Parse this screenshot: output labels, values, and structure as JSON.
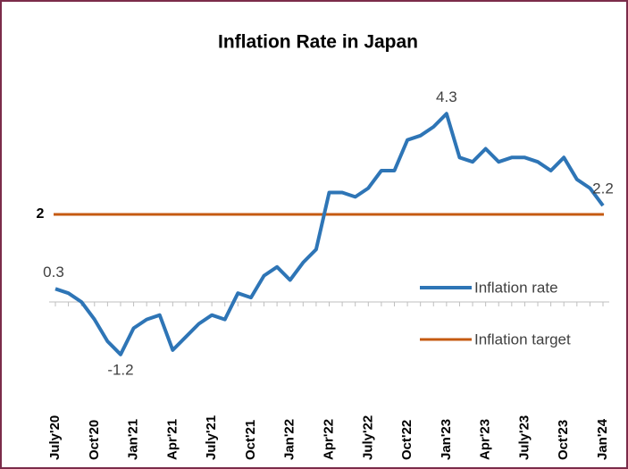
{
  "chart_data": {
    "type": "line",
    "title": "Inflation Rate in Japan",
    "categories": [
      "July'20",
      null,
      null,
      "Oct'20",
      null,
      null,
      "Jan'21",
      null,
      null,
      "Apr'21",
      null,
      null,
      "July'21",
      null,
      null,
      "Oct'21",
      null,
      null,
      "Jan'22",
      null,
      null,
      "Apr'22",
      null,
      null,
      "July'22",
      null,
      null,
      "Oct'22",
      null,
      null,
      "Jan'23",
      null,
      null,
      "Apr'23",
      null,
      null,
      "July'23",
      null,
      null,
      "Oct'23",
      null,
      null,
      "Jan'24"
    ],
    "series": [
      {
        "name": "Inflation rate",
        "color": "#2e75b6",
        "values": [
          0.3,
          0.2,
          0.0,
          -0.4,
          -0.9,
          -1.2,
          -0.6,
          -0.4,
          -0.3,
          -1.1,
          -0.8,
          -0.5,
          -0.3,
          -0.4,
          0.2,
          0.1,
          0.6,
          0.8,
          0.5,
          0.9,
          1.2,
          2.5,
          2.5,
          2.4,
          2.6,
          3.0,
          3.0,
          3.7,
          3.8,
          4.0,
          4.3,
          3.3,
          3.2,
          3.5,
          3.2,
          3.3,
          3.3,
          3.2,
          3.0,
          3.3,
          2.8,
          2.6,
          2.2
        ],
        "value_labels": [
          "0.3",
          null,
          null,
          null,
          null,
          "-1.2",
          null,
          null,
          null,
          null,
          null,
          null,
          null,
          null,
          null,
          null,
          null,
          null,
          null,
          null,
          null,
          null,
          null,
          null,
          null,
          null,
          null,
          null,
          null,
          null,
          "4.3",
          null,
          null,
          null,
          null,
          null,
          null,
          null,
          null,
          null,
          null,
          null,
          "2.2"
        ]
      }
    ],
    "target": {
      "name": "Inflation target",
      "color": "#c55a11",
      "value": 2
    },
    "ylim": [
      -1.6,
      4.8
    ]
  }
}
